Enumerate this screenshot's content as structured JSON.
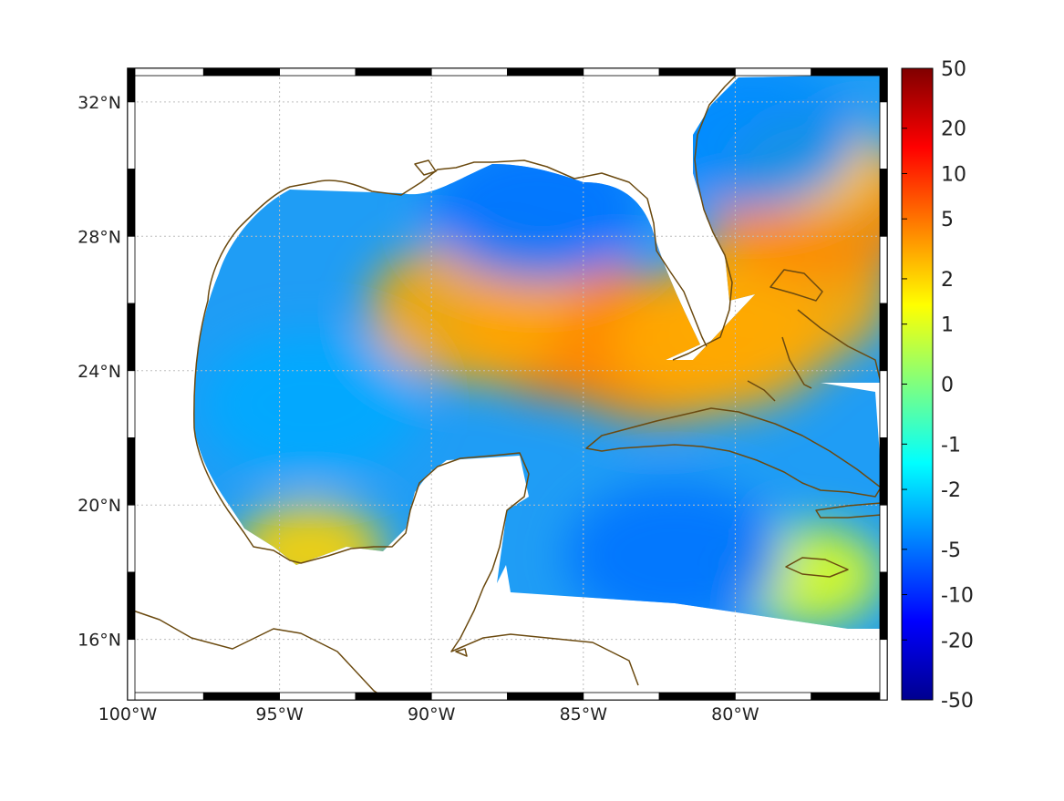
{
  "chart_data": {
    "type": "heatmap",
    "map_extent": {
      "lon": [
        -100,
        -75
      ],
      "lat": [
        14.2,
        33
      ]
    },
    "x_ticks": [
      {
        "value": -100,
        "label": "100°W"
      },
      {
        "value": -95,
        "label": "95°W"
      },
      {
        "value": -90,
        "label": "90°W"
      },
      {
        "value": -85,
        "label": "85°W"
      },
      {
        "value": -80,
        "label": "80°W"
      }
    ],
    "y_ticks": [
      {
        "value": 32,
        "label": "32°N"
      },
      {
        "value": 28,
        "label": "28°N"
      },
      {
        "value": 24,
        "label": "24°N"
      },
      {
        "value": 20,
        "label": "20°N"
      },
      {
        "value": 16,
        "label": "16°N"
      }
    ],
    "grid": true,
    "colorbar": {
      "min": -50,
      "max": 50,
      "ticks": [
        {
          "value": 50,
          "label": "50"
        },
        {
          "value": 20,
          "label": "20"
        },
        {
          "value": 10,
          "label": "10"
        },
        {
          "value": 5,
          "label": "5"
        },
        {
          "value": 2,
          "label": "2"
        },
        {
          "value": 1,
          "label": "1"
        },
        {
          "value": 0,
          "label": "0"
        },
        {
          "value": -1,
          "label": "-1"
        },
        {
          "value": -2,
          "label": "-2"
        },
        {
          "value": -5,
          "label": "-5"
        },
        {
          "value": -10,
          "label": "-10"
        },
        {
          "value": -20,
          "label": "-20"
        },
        {
          "value": -50,
          "label": "-50"
        }
      ],
      "colormap": "jet"
    },
    "field_features": [
      {
        "name": "loop-current-core",
        "lon": -85.5,
        "lat": 25.3,
        "value": 5
      },
      {
        "name": "loop-current-west",
        "lon": -88.5,
        "lat": 25.8,
        "value": 3
      },
      {
        "name": "loop-current-east",
        "lon": -82.5,
        "lat": 24.6,
        "value": 4
      },
      {
        "name": "florida-straits",
        "lon": -80.5,
        "lat": 24.9,
        "value": 3
      },
      {
        "name": "bahamas-bank",
        "lon": -78.5,
        "lat": 26.2,
        "value": 3
      },
      {
        "name": "atlantic-eddy",
        "lon": -77.2,
        "lat": 28.8,
        "value": 4
      },
      {
        "name": "atlantic-eddy-n",
        "lon": -77.5,
        "lat": 30.2,
        "value": 2
      },
      {
        "name": "campeche-spot",
        "lon": -94.0,
        "lat": 18.6,
        "value": 2
      },
      {
        "name": "jamaica-spot",
        "lon": -77.6,
        "lat": 17.9,
        "value": 1
      },
      {
        "name": "northeast-gulf",
        "lon": -86.5,
        "lat": 28.8,
        "value": -5
      },
      {
        "name": "western-gulf",
        "lon": -94.0,
        "lat": 23.0,
        "value": -3
      },
      {
        "name": "caribbean",
        "lon": -82.0,
        "lat": 18.5,
        "value": -5
      },
      {
        "name": "atlantic-north",
        "lon": -79.5,
        "lat": 31.0,
        "value": -4
      }
    ]
  }
}
